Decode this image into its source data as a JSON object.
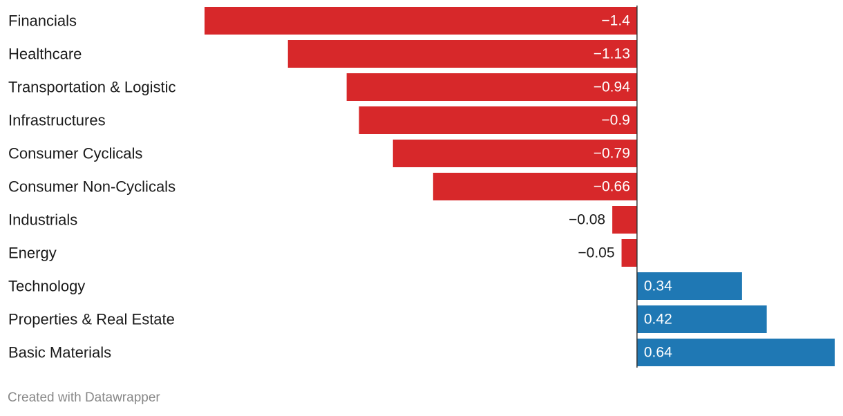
{
  "chart_data": {
    "type": "bar",
    "orientation": "horizontal",
    "categories": [
      "Financials",
      "Healthcare",
      "Transportation & Logistic",
      "Infrastructures",
      "Consumer Cyclicals",
      "Consumer Non-Cyclicals",
      "Industrials",
      "Energy",
      "Technology",
      "Properties & Real Estate",
      "Basic Materials"
    ],
    "values": [
      -1.4,
      -1.13,
      -0.94,
      -0.9,
      -0.79,
      -0.66,
      -0.08,
      -0.05,
      0.34,
      0.42,
      0.64
    ],
    "value_labels": [
      "−1.4",
      "−1.13",
      "−0.94",
      "−0.9",
      "−0.79",
      "−0.66",
      "−0.08",
      "−0.05",
      "0.34",
      "0.42",
      "0.64"
    ],
    "xlim": [
      -1.4,
      0.64
    ],
    "colors": {
      "negative": "#d7282a",
      "positive": "#1f78b4",
      "label_inside": "#ffffff",
      "label_outside": "#1a1a1a",
      "axis": "#333333"
    },
    "grid": false,
    "title": "",
    "xlabel": "",
    "ylabel": ""
  },
  "footer": {
    "credit": "Created with Datawrapper"
  }
}
